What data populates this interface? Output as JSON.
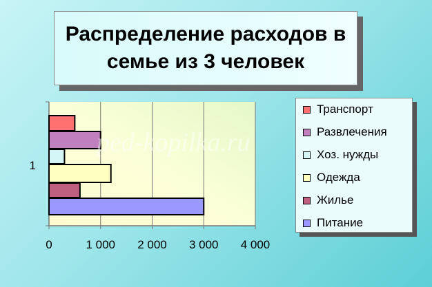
{
  "chart_data": {
    "type": "bar",
    "orientation": "horizontal",
    "title": "Распределение расходов в семье из 3 человек",
    "categories": [
      "1"
    ],
    "series": [
      {
        "name": "Транспорт",
        "values": [
          500
        ],
        "color": "#ff7070"
      },
      {
        "name": "Развлечения",
        "values": [
          1000
        ],
        "color": "#c080c0"
      },
      {
        "name": "Хоз. нужды",
        "values": [
          300
        ],
        "color": "#d4f6f6"
      },
      {
        "name": "Одежда",
        "values": [
          1200
        ],
        "color": "#ffffc0"
      },
      {
        "name": "Жилье",
        "values": [
          600
        ],
        "color": "#c06080"
      },
      {
        "name": "Питание",
        "values": [
          3000
        ],
        "color": "#9999ff"
      }
    ],
    "xlim": [
      0,
      4000
    ],
    "xticks": [
      "0",
      "1 000",
      "2 000",
      "3 000",
      "4 000"
    ],
    "grid": true,
    "legend": "right"
  },
  "watermark": "ped-kopilka.ru"
}
